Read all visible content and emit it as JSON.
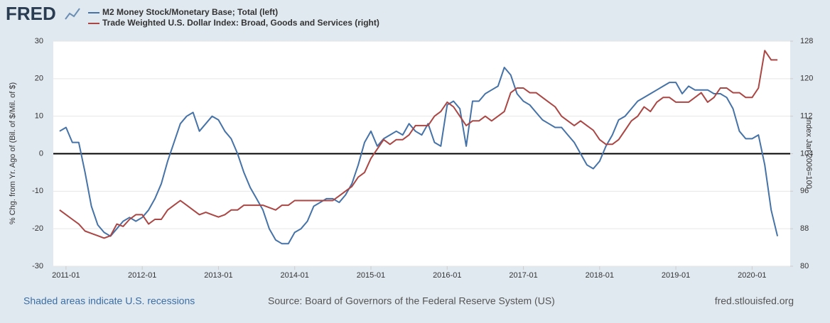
{
  "logo": "FRED",
  "footer": {
    "recessions": "Shaded areas indicate U.S. recessions",
    "source": "Source: Board of Governors of the Federal Reserve System (US)",
    "site": "fred.stlouisfed.org"
  },
  "chart_data": {
    "type": "line",
    "x": [
      "2010-12",
      "2011-01",
      "2011-02",
      "2011-03",
      "2011-04",
      "2011-05",
      "2011-06",
      "2011-07",
      "2011-08",
      "2011-09",
      "2011-10",
      "2011-11",
      "2011-12",
      "2012-01",
      "2012-02",
      "2012-03",
      "2012-04",
      "2012-05",
      "2012-06",
      "2012-07",
      "2012-08",
      "2012-09",
      "2012-10",
      "2012-11",
      "2012-12",
      "2013-01",
      "2013-02",
      "2013-03",
      "2013-04",
      "2013-05",
      "2013-06",
      "2013-07",
      "2013-08",
      "2013-09",
      "2013-10",
      "2013-11",
      "2013-12",
      "2014-01",
      "2014-02",
      "2014-03",
      "2014-04",
      "2014-05",
      "2014-06",
      "2014-07",
      "2014-08",
      "2014-09",
      "2014-10",
      "2014-11",
      "2014-12",
      "2015-01",
      "2015-02",
      "2015-03",
      "2015-04",
      "2015-05",
      "2015-06",
      "2015-07",
      "2015-08",
      "2015-09",
      "2015-10",
      "2015-11",
      "2015-12",
      "2016-01",
      "2016-02",
      "2016-03",
      "2016-04",
      "2016-05",
      "2016-06",
      "2016-07",
      "2016-08",
      "2016-09",
      "2016-10",
      "2016-11",
      "2016-12",
      "2017-01",
      "2017-02",
      "2017-03",
      "2017-04",
      "2017-05",
      "2017-06",
      "2017-07",
      "2017-08",
      "2017-09",
      "2017-10",
      "2017-11",
      "2017-12",
      "2018-01",
      "2018-02",
      "2018-03",
      "2018-04",
      "2018-05",
      "2018-06",
      "2018-07",
      "2018-08",
      "2018-09",
      "2018-10",
      "2018-11",
      "2018-12",
      "2019-01",
      "2019-02",
      "2019-03",
      "2019-04",
      "2019-05",
      "2019-06",
      "2019-07",
      "2019-08",
      "2019-09",
      "2019-10",
      "2019-11",
      "2019-12",
      "2020-01",
      "2020-02",
      "2020-03",
      "2020-04",
      "2020-05"
    ],
    "series": [
      {
        "name": "M2 Money Stock/Monetary Base; Total (left)",
        "color": "#4572a7",
        "values": [
          6,
          7,
          3,
          3,
          -5,
          -14,
          -19,
          -21,
          -22,
          -20,
          -18,
          -17,
          -18,
          -17,
          -15,
          -12,
          -8,
          -2,
          3,
          8,
          10,
          11,
          6,
          8,
          10,
          9,
          6,
          4,
          0,
          -5,
          -9,
          -12,
          -15,
          -20,
          -23,
          -24,
          -24,
          -21,
          -20,
          -18,
          -14,
          -13,
          -12,
          -12,
          -13,
          -11,
          -8,
          -3,
          3,
          6,
          2,
          4,
          5,
          6,
          5,
          8,
          6,
          5,
          8,
          3,
          2,
          13,
          14,
          12,
          2,
          14,
          14,
          16,
          17,
          18,
          23,
          21,
          16,
          14,
          13,
          11,
          9,
          8,
          7,
          7,
          5,
          3,
          0,
          -3,
          -4,
          -2,
          2,
          5,
          9,
          10,
          12,
          14,
          15,
          16,
          17,
          18,
          19,
          19,
          16,
          18,
          17,
          17,
          17,
          16,
          16,
          15,
          12,
          6,
          4,
          4,
          5,
          -3,
          -15,
          -22
        ]
      },
      {
        "name": "Trade Weighted U.S. Dollar Index: Broad, Goods and Services (right)",
        "color": "#aa4643",
        "axis": "y2",
        "values": [
          92,
          91,
          90,
          89,
          87.5,
          87,
          86.5,
          86,
          86.5,
          89,
          88.5,
          90,
          91,
          91,
          89,
          90,
          90,
          92,
          93,
          94,
          93,
          92,
          91,
          91.5,
          91,
          90.5,
          91,
          92,
          92,
          93,
          93,
          93,
          93,
          92.5,
          92,
          93,
          93,
          94,
          94,
          94,
          94,
          94,
          94,
          94,
          95,
          96,
          97,
          99,
          100,
          103,
          105,
          107,
          106,
          107,
          107,
          108,
          110,
          110,
          110,
          112,
          113,
          115,
          114,
          112,
          110,
          111,
          111,
          112,
          111,
          112,
          113,
          117,
          118,
          118,
          117,
          117,
          116,
          115,
          114,
          112,
          111,
          110,
          111,
          110,
          109,
          107,
          106,
          106,
          107,
          109,
          111,
          112,
          114,
          113,
          115,
          116,
          116,
          115,
          115,
          115,
          116,
          117,
          115,
          116,
          118,
          118,
          117,
          117,
          116,
          116,
          118,
          126,
          124,
          124
        ]
      }
    ],
    "xlim": [
      "2010-11",
      "2020-07"
    ],
    "xticks": [
      "2011-01",
      "2012-01",
      "2013-01",
      "2014-01",
      "2015-01",
      "2016-01",
      "2017-01",
      "2018-01",
      "2019-01",
      "2020-01"
    ],
    "ylabel": "% Chg. from Yr. Ago of (Bil. of $/Mil. of $)",
    "ylim": [
      -30,
      30
    ],
    "yticks": [
      -30,
      -20,
      -10,
      0,
      10,
      20,
      30
    ],
    "y2label": "Index Jan 2006=100",
    "y2lim": [
      80,
      128
    ],
    "y2ticks": [
      80,
      88,
      96,
      104,
      112,
      120,
      128
    ],
    "reference_line": 0,
    "grid": true
  }
}
